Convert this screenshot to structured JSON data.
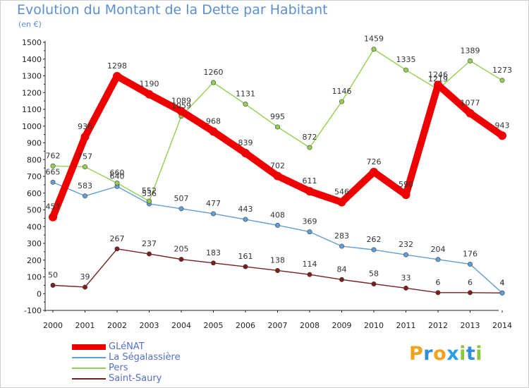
{
  "title": "Evolution du Montant de la Dette par Habitant",
  "subtitle": "(en €)",
  "logo": {
    "letters": [
      "P",
      "r",
      "o",
      "x",
      "i",
      "t",
      "i"
    ],
    "colors": [
      "#f2a31b",
      "#2f8fd8",
      "#f2a31b",
      "#2aa0e0",
      "#8cc63f",
      "#2f8fd8",
      "#8cc63f"
    ]
  },
  "chart_data": {
    "type": "line",
    "x": [
      "2000",
      "2001",
      "2002",
      "2003",
      "2004",
      "2005",
      "2006",
      "2007",
      "2008",
      "2009",
      "2010",
      "2011",
      "2012",
      "2013",
      "2014"
    ],
    "ylim": [
      -100,
      1500
    ],
    "yticks": [
      -100,
      0,
      100,
      200,
      300,
      400,
      500,
      600,
      700,
      800,
      900,
      1000,
      1100,
      1200,
      1300,
      1400,
      1500
    ],
    "grid": false,
    "legend_position": "bottom-left",
    "series": [
      {
        "name": "GLéNAT",
        "color": "#ee0000",
        "values": [
          457,
          936,
          1298,
          1190,
          1089,
          968,
          839,
          702,
          611,
          546,
          726,
          590,
          1246,
          1077,
          943
        ],
        "labels": [
          "457",
          "936",
          "1298",
          "1190",
          "1089",
          "968",
          "839",
          "702",
          "611",
          "546",
          "726",
          "590",
          "1246",
          "1077",
          "943"
        ]
      },
      {
        "name": "La Ségalassière",
        "color": "#5f9ed6",
        "values": [
          665,
          583,
          640,
          536,
          507,
          477,
          443,
          408,
          369,
          283,
          262,
          232,
          204,
          176,
          4
        ],
        "labels": [
          "665",
          "583",
          "640",
          "536",
          "507",
          "477",
          "443",
          "408",
          "369",
          "283",
          "262",
          "232",
          "204",
          "176",
          "4"
        ]
      },
      {
        "name": "Pers",
        "color": "#92d050",
        "values": [
          762,
          757,
          660,
          552,
          1059,
          1260,
          1131,
          995,
          872,
          1146,
          1459,
          1335,
          1219,
          1389,
          1273
        ],
        "labels": [
          "762",
          "757",
          "660",
          "552",
          "1059",
          "1260",
          "1131",
          "995",
          "872",
          "1146",
          "1459",
          "1335",
          "1219",
          "1389",
          "1273"
        ]
      },
      {
        "name": "Saint-Saury",
        "color": "#7a1f1f",
        "values": [
          50,
          39,
          267,
          237,
          205,
          183,
          161,
          138,
          114,
          84,
          58,
          33,
          6,
          6,
          4
        ],
        "labels": [
          "50",
          "39",
          "267",
          "237",
          "205",
          "183",
          "161",
          "138",
          "114",
          "84",
          "58",
          "33",
          "6",
          "6",
          "4"
        ]
      }
    ]
  }
}
